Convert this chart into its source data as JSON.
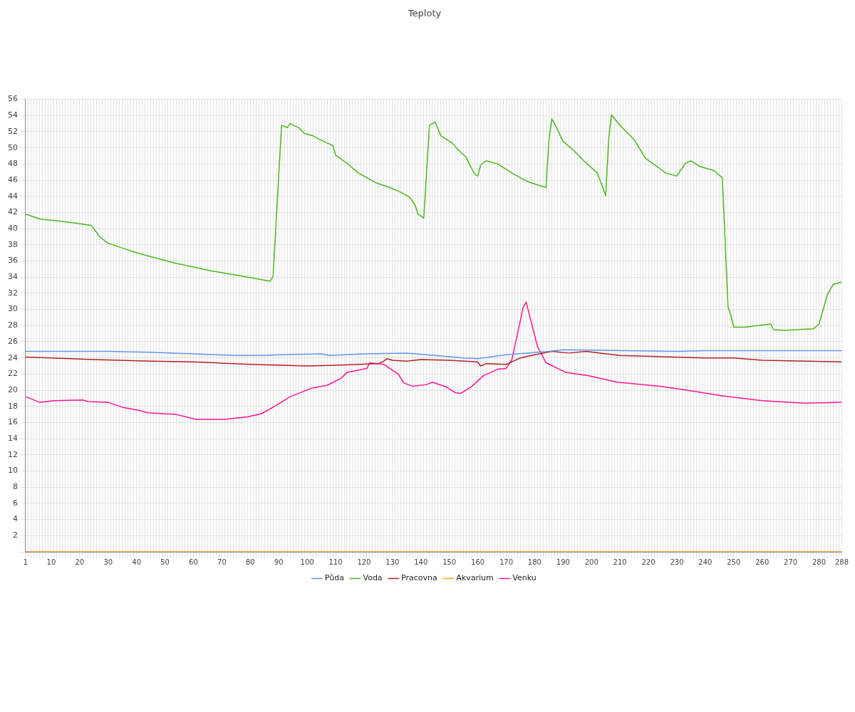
{
  "chart_data": {
    "type": "line",
    "title": "Teploty",
    "xlim": [
      1,
      288
    ],
    "xticks": [
      1,
      {
        "value": 2,
        "label": null
      },
      {
        "value": 3,
        "label": null
      },
      {
        "value": 4,
        "label": null
      },
      {
        "value": 5,
        "label": null
      },
      {
        "value": 6,
        "label": null
      },
      {
        "value": 7,
        "label": null
      },
      {
        "value": 8,
        "label": null
      },
      {
        "value": 9,
        "label": null
      },
      10,
      {
        "value": 11,
        "label": null
      },
      {
        "value": 12,
        "label": null
      },
      {
        "value": 13,
        "label": null
      },
      {
        "value": 14,
        "label": null
      },
      {
        "value": 15,
        "label": null
      },
      {
        "value": 16,
        "label": null
      },
      {
        "value": 17,
        "label": null
      },
      {
        "value": 18,
        "label": null
      },
      {
        "value": 19,
        "label": null
      },
      20,
      {
        "value": 21,
        "label": null
      },
      {
        "value": 22,
        "label": null
      },
      {
        "value": 23,
        "label": null
      },
      {
        "value": 24,
        "label": null
      },
      {
        "value": 25,
        "label": null
      },
      {
        "value": 26,
        "label": null
      },
      {
        "value": 27,
        "label": null
      },
      {
        "value": 28,
        "label": null
      },
      {
        "value": 29,
        "label": null
      },
      30,
      {
        "value": 31,
        "label": null
      },
      {
        "value": 32,
        "label": null
      },
      {
        "value": 33,
        "label": null
      },
      {
        "value": 34,
        "label": null
      },
      {
        "value": 35,
        "label": null
      },
      {
        "value": 36,
        "label": null
      },
      {
        "value": 37,
        "label": null
      },
      {
        "value": 38,
        "label": null
      },
      {
        "value": 39,
        "label": null
      },
      40,
      {
        "value": 41,
        "label": null
      },
      {
        "value": 42,
        "label": null
      },
      {
        "value": 43,
        "label": null
      },
      {
        "value": 44,
        "label": null
      },
      {
        "value": 45,
        "label": null
      },
      {
        "value": 46,
        "label": null
      },
      {
        "value": 47,
        "label": null
      },
      {
        "value": 48,
        "label": null
      },
      {
        "value": 49,
        "label": null
      },
      50,
      {
        "value": 51,
        "label": null
      },
      {
        "value": 52,
        "label": null
      },
      {
        "value": 53,
        "label": null
      },
      {
        "value": 54,
        "label": null
      },
      {
        "value": 55,
        "label": null
      },
      {
        "value": 56,
        "label": null
      },
      {
        "value": 57,
        "label": null
      },
      {
        "value": 58,
        "label": null
      },
      {
        "value": 59,
        "label": null
      },
      60,
      {
        "value": 61,
        "label": null
      },
      {
        "value": 62,
        "label": null
      },
      {
        "value": 63,
        "label": null
      },
      {
        "value": 64,
        "label": null
      },
      {
        "value": 65,
        "label": null
      },
      {
        "value": 66,
        "label": null
      },
      {
        "value": 67,
        "label": null
      },
      {
        "value": 68,
        "label": null
      },
      {
        "value": 69,
        "label": null
      },
      70,
      {
        "value": 71,
        "label": null
      },
      {
        "value": 72,
        "label": null
      },
      {
        "value": 73,
        "label": null
      },
      {
        "value": 74,
        "label": null
      },
      {
        "value": 75,
        "label": null
      },
      {
        "value": 76,
        "label": null
      },
      {
        "value": 77,
        "label": null
      },
      {
        "value": 78,
        "label": null
      },
      {
        "value": 79,
        "label": null
      },
      80,
      {
        "value": 81,
        "label": null
      },
      {
        "value": 82,
        "label": null
      },
      {
        "value": 83,
        "label": null
      },
      {
        "value": 84,
        "label": null
      },
      {
        "value": 85,
        "label": null
      },
      {
        "value": 86,
        "label": null
      },
      {
        "value": 87,
        "label": null
      },
      {
        "value": 88,
        "label": null
      },
      {
        "value": 89,
        "label": null
      },
      90,
      {
        "value": 91,
        "label": null
      },
      {
        "value": 92,
        "label": null
      },
      {
        "value": 93,
        "label": null
      },
      {
        "value": 94,
        "label": null
      },
      {
        "value": 95,
        "label": null
      },
      {
        "value": 96,
        "label": null
      },
      {
        "value": 97,
        "label": null
      },
      {
        "value": 98,
        "label": null
      },
      {
        "value": 99,
        "label": null
      },
      100,
      {
        "value": 101,
        "label": null
      },
      {
        "value": 102,
        "label": null
      },
      {
        "value": 103,
        "label": null
      },
      {
        "value": 104,
        "label": null
      },
      {
        "value": 105,
        "label": null
      },
      {
        "value": 106,
        "label": null
      },
      {
        "value": 107,
        "label": null
      },
      {
        "value": 108,
        "label": null
      },
      {
        "value": 109,
        "label": null
      },
      110,
      {
        "value": 111,
        "label": null
      },
      {
        "value": 112,
        "label": null
      },
      {
        "value": 113,
        "label": null
      },
      {
        "value": 114,
        "label": null
      },
      {
        "value": 115,
        "label": null
      },
      {
        "value": 116,
        "label": null
      },
      {
        "value": 117,
        "label": null
      },
      {
        "value": 118,
        "label": null
      },
      {
        "value": 119,
        "label": null
      },
      120,
      {
        "value": 121,
        "label": null
      },
      {
        "value": 122,
        "label": null
      },
      {
        "value": 123,
        "label": null
      },
      {
        "value": 124,
        "label": null
      },
      {
        "value": 125,
        "label": null
      },
      {
        "value": 126,
        "label": null
      },
      {
        "value": 127,
        "label": null
      },
      {
        "value": 128,
        "label": null
      },
      {
        "value": 129,
        "label": null
      },
      130,
      {
        "value": 131,
        "label": null
      },
      {
        "value": 132,
        "label": null
      },
      {
        "value": 133,
        "label": null
      },
      {
        "value": 134,
        "label": null
      },
      {
        "value": 135,
        "label": null
      },
      {
        "value": 136,
        "label": null
      },
      {
        "value": 137,
        "label": null
      },
      {
        "value": 138,
        "label": null
      },
      {
        "value": 139,
        "label": null
      },
      140,
      {
        "value": 141,
        "label": null
      },
      {
        "value": 142,
        "label": null
      },
      {
        "value": 143,
        "label": null
      },
      {
        "value": 144,
        "label": null
      },
      {
        "value": 145,
        "label": null
      },
      {
        "value": 146,
        "label": null
      },
      {
        "value": 147,
        "label": null
      },
      {
        "value": 148,
        "label": null
      },
      {
        "value": 149,
        "label": null
      },
      150,
      {
        "value": 151,
        "label": null
      },
      {
        "value": 152,
        "label": null
      },
      {
        "value": 153,
        "label": null
      },
      {
        "value": 154,
        "label": null
      },
      {
        "value": 155,
        "label": null
      },
      {
        "value": 156,
        "label": null
      },
      {
        "value": 157,
        "label": null
      },
      {
        "value": 158,
        "label": null
      },
      {
        "value": 159,
        "label": null
      },
      160,
      {
        "value": 161,
        "label": null
      },
      {
        "value": 162,
        "label": null
      },
      {
        "value": 163,
        "label": null
      },
      {
        "value": 164,
        "label": null
      },
      {
        "value": 165,
        "label": null
      },
      {
        "value": 166,
        "label": null
      },
      {
        "value": 167,
        "label": null
      },
      {
        "value": 168,
        "label": null
      },
      {
        "value": 169,
        "label": null
      },
      170,
      {
        "value": 171,
        "label": null
      },
      {
        "value": 172,
        "label": null
      },
      {
        "value": 173,
        "label": null
      },
      {
        "value": 174,
        "label": null
      },
      {
        "value": 175,
        "label": null
      },
      {
        "value": 176,
        "label": null
      },
      {
        "value": 177,
        "label": null
      },
      {
        "value": 178,
        "label": null
      },
      {
        "value": 179,
        "label": null
      },
      180,
      {
        "value": 181,
        "label": null
      },
      {
        "value": 182,
        "label": null
      },
      {
        "value": 183,
        "label": null
      },
      {
        "value": 184,
        "label": null
      },
      {
        "value": 185,
        "label": null
      },
      {
        "value": 186,
        "label": null
      },
      {
        "value": 187,
        "label": null
      },
      {
        "value": 188,
        "label": null
      },
      {
        "value": 189,
        "label": null
      },
      190,
      {
        "value": 191,
        "label": null
      },
      {
        "value": 192,
        "label": null
      },
      {
        "value": 193,
        "label": null
      },
      {
        "value": 194,
        "label": null
      },
      {
        "value": 195,
        "label": null
      },
      {
        "value": 196,
        "label": null
      },
      {
        "value": 197,
        "label": null
      },
      {
        "value": 198,
        "label": null
      },
      {
        "value": 199,
        "label": null
      },
      200,
      {
        "value": 201,
        "label": null
      },
      {
        "value": 202,
        "label": null
      },
      {
        "value": 203,
        "label": null
      },
      {
        "value": 204,
        "label": null
      },
      {
        "value": 205,
        "label": null
      },
      {
        "value": 206,
        "label": null
      },
      {
        "value": 207,
        "label": null
      },
      {
        "value": 208,
        "label": null
      },
      {
        "value": 209,
        "label": null
      },
      210,
      {
        "value": 211,
        "label": null
      },
      {
        "value": 212,
        "label": null
      },
      {
        "value": 213,
        "label": null
      },
      {
        "value": 214,
        "label": null
      },
      {
        "value": 215,
        "label": null
      },
      {
        "value": 216,
        "label": null
      },
      {
        "value": 217,
        "label": null
      },
      {
        "value": 218,
        "label": null
      },
      {
        "value": 219,
        "label": null
      },
      220,
      {
        "value": 221,
        "label": null
      },
      {
        "value": 222,
        "label": null
      },
      {
        "value": 223,
        "label": null
      },
      {
        "value": 224,
        "label": null
      },
      {
        "value": 225,
        "label": null
      },
      {
        "value": 226,
        "label": null
      },
      {
        "value": 227,
        "label": null
      },
      {
        "value": 228,
        "label": null
      },
      {
        "value": 229,
        "label": null
      },
      230,
      {
        "value": 231,
        "label": null
      },
      {
        "value": 232,
        "label": null
      },
      {
        "value": 233,
        "label": null
      },
      {
        "value": 234,
        "label": null
      },
      {
        "value": 235,
        "label": null
      },
      {
        "value": 236,
        "label": null
      },
      {
        "value": 237,
        "label": null
      },
      {
        "value": 238,
        "label": null
      },
      {
        "value": 239,
        "label": null
      },
      240,
      {
        "value": 241,
        "label": null
      },
      {
        "value": 242,
        "label": null
      },
      {
        "value": 243,
        "label": null
      },
      {
        "value": 244,
        "label": null
      },
      {
        "value": 245,
        "label": null
      },
      {
        "value": 246,
        "label": null
      },
      {
        "value": 247,
        "label": null
      },
      {
        "value": 248,
        "label": null
      },
      {
        "value": 249,
        "label": null
      },
      250,
      {
        "value": 251,
        "label": null
      },
      {
        "value": 252,
        "label": null
      },
      {
        "value": 253,
        "label": null
      },
      {
        "value": 254,
        "label": null
      },
      {
        "value": 255,
        "label": null
      },
      {
        "value": 256,
        "label": null
      },
      {
        "value": 257,
        "label": null
      },
      {
        "value": 258,
        "label": null
      },
      {
        "value": 259,
        "label": null
      },
      260,
      {
        "value": 261,
        "label": null
      },
      {
        "value": 262,
        "label": null
      },
      {
        "value": 263,
        "label": null
      },
      {
        "value": 264,
        "label": null
      },
      {
        "value": 265,
        "label": null
      },
      {
        "value": 266,
        "label": null
      },
      {
        "value": 267,
        "label": null
      },
      {
        "value": 268,
        "label": null
      },
      {
        "value": 269,
        "label": null
      },
      270,
      {
        "value": 271,
        "label": null
      },
      {
        "value": 272,
        "label": null
      },
      {
        "value": 273,
        "label": null
      },
      {
        "value": 274,
        "label": null
      },
      {
        "value": 275,
        "label": null
      },
      {
        "value": 276,
        "label": null
      },
      {
        "value": 277,
        "label": null
      },
      {
        "value": 278,
        "label": null
      },
      {
        "value": 279,
        "label": null
      },
      280,
      {
        "value": 281,
        "label": null
      },
      {
        "value": 282,
        "label": null
      },
      {
        "value": 283,
        "label": null
      },
      {
        "value": 284,
        "label": null
      },
      {
        "value": 285,
        "label": null
      },
      {
        "value": 286,
        "label": null
      },
      {
        "value": 287,
        "label": null
      },
      288
    ],
    "ylim": [
      0,
      56
    ],
    "yticks": [
      {
        "value": 0,
        "label": null
      },
      2,
      4,
      6,
      8,
      10,
      12,
      14,
      16,
      18,
      20,
      22,
      24,
      26,
      28,
      30,
      32,
      34,
      36,
      38,
      40,
      42,
      44,
      46,
      48,
      50,
      52,
      54,
      56
    ],
    "grid": true,
    "legend": "bottom",
    "marker": "none",
    "line_style": "solid",
    "series": [
      {
        "name": "Půda",
        "color": "#6495ed",
        "x": [
          1,
          30,
          45,
          60,
          75,
          85,
          90,
          105,
          108,
          120,
          135,
          145,
          155,
          160,
          170,
          185,
          190,
          230,
          240,
          288
        ],
        "values": [
          24.8,
          24.8,
          24.7,
          24.5,
          24.3,
          24.3,
          24.4,
          24.5,
          24.3,
          24.5,
          24.6,
          24.3,
          24.0,
          23.9,
          24.4,
          24.8,
          25.0,
          24.8,
          24.9,
          24.9
        ]
      },
      {
        "name": "Voda",
        "color": "#4cb81a",
        "x": [
          1,
          6,
          16,
          24,
          25,
          27,
          30,
          35,
          41,
          54,
          66,
          76,
          87,
          88,
          91,
          93,
          94,
          97,
          99,
          102,
          104,
          107,
          109,
          110,
          114,
          118,
          121,
          124,
          129,
          133,
          136,
          138,
          139,
          141,
          143,
          145,
          147,
          151,
          153,
          156,
          157,
          159,
          160,
          161,
          163,
          167,
          172,
          177,
          182,
          184,
          185,
          186,
          187,
          190,
          194,
          197,
          202,
          205,
          206,
          207,
          210,
          215,
          219,
          223,
          226,
          230,
          233,
          235,
          238,
          243,
          246,
          248,
          249,
          250,
          254,
          263,
          264,
          268,
          278,
          280,
          283,
          285,
          288
        ],
        "values": [
          41.8,
          41.2,
          40.8,
          40.4,
          40.0,
          39.0,
          38.2,
          37.6,
          36.9,
          35.7,
          34.8,
          34.2,
          33.5,
          34.1,
          52.8,
          52.5,
          53.0,
          52.5,
          51.8,
          51.5,
          51.1,
          50.6,
          50.3,
          49.1,
          48.1,
          46.9,
          46.3,
          45.7,
          45.1,
          44.5,
          43.9,
          42.9,
          41.8,
          41.3,
          52.8,
          53.2,
          51.5,
          50.6,
          49.8,
          48.8,
          48.0,
          46.7,
          46.5,
          47.9,
          48.4,
          48.0,
          46.9,
          45.9,
          45.3,
          45.1,
          50.9,
          53.6,
          53.0,
          50.8,
          49.6,
          48.5,
          46.9,
          44.1,
          51.0,
          54.1,
          52.8,
          51.0,
          48.7,
          47.7,
          46.9,
          46.5,
          48.1,
          48.4,
          47.7,
          47.2,
          46.3,
          30.3,
          29.3,
          27.8,
          27.8,
          28.2,
          27.5,
          27.4,
          27.6,
          28.2,
          31.9,
          33.1,
          33.4
        ]
      },
      {
        "name": "Pracovna",
        "color": "#b22222",
        "x": [
          1,
          10,
          25,
          45,
          60,
          80,
          100,
          110,
          125,
          127,
          128,
          130,
          135,
          140,
          150,
          160,
          161,
          163,
          170,
          175,
          180,
          186,
          192,
          198,
          210,
          240,
          250,
          260,
          288
        ],
        "values": [
          24.1,
          24.0,
          23.8,
          23.6,
          23.5,
          23.2,
          23.0,
          23.1,
          23.3,
          23.6,
          23.9,
          23.7,
          23.6,
          23.8,
          23.7,
          23.5,
          23.0,
          23.3,
          23.2,
          24.0,
          24.4,
          24.8,
          24.6,
          24.8,
          24.3,
          24.0,
          24.0,
          23.7,
          23.5
        ]
      },
      {
        "name": "Akvarium",
        "color": "#ffa500",
        "x": [
          1,
          288
        ],
        "values": [
          0,
          0
        ]
      },
      {
        "name": "Venku",
        "color": "#ff1493",
        "x": [
          1,
          6,
          11,
          21,
          23,
          30,
          35,
          41,
          44,
          54,
          61,
          71,
          79,
          84,
          89,
          94,
          102,
          107,
          112,
          114,
          121,
          122,
          127,
          132,
          134,
          137,
          142,
          144,
          149,
          152,
          154,
          158,
          162,
          167,
          170,
          172,
          176,
          177,
          181,
          184,
          191,
          199,
          209,
          224,
          232,
          246,
          260,
          275,
          288
        ],
        "values": [
          19.2,
          18.5,
          18.7,
          18.8,
          18.6,
          18.5,
          17.9,
          17.5,
          17.2,
          17.0,
          16.4,
          16.4,
          16.7,
          17.1,
          18.1,
          19.2,
          20.3,
          20.6,
          21.5,
          22.2,
          22.7,
          23.4,
          23.2,
          22.0,
          20.9,
          20.5,
          20.7,
          21.0,
          20.4,
          19.7,
          19.6,
          20.5,
          21.8,
          22.6,
          22.7,
          23.8,
          30.3,
          30.9,
          25.4,
          23.4,
          22.2,
          21.8,
          21.0,
          20.5,
          20.1,
          19.3,
          18.7,
          18.4,
          18.5
        ]
      }
    ]
  }
}
